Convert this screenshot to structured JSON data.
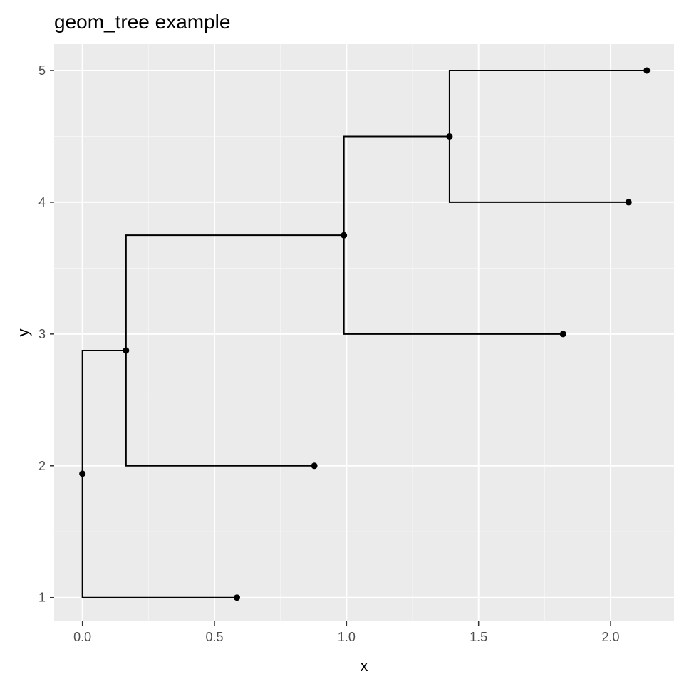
{
  "chart_data": {
    "type": "line",
    "title": "geom_tree example",
    "xlabel": "x",
    "ylabel": "y",
    "xlim": [
      -0.107,
      2.24
    ],
    "ylim": [
      0.82,
      5.2
    ],
    "x_ticks": [
      0.0,
      0.5,
      1.0,
      1.5,
      2.0
    ],
    "x_tick_labels": [
      "0.0",
      "0.5",
      "1.0",
      "1.5",
      "2.0"
    ],
    "y_ticks": [
      1,
      2,
      3,
      4,
      5
    ],
    "y_tick_labels": [
      "1",
      "2",
      "3",
      "4",
      "5"
    ],
    "grid": true,
    "nodes": [
      {
        "x": 0.0,
        "y": 1.94
      },
      {
        "x": 0.165,
        "y": 2.875
      },
      {
        "x": 0.99,
        "y": 3.75
      },
      {
        "x": 1.39,
        "y": 4.5
      },
      {
        "x": 0.585,
        "y": 1.0
      },
      {
        "x": 0.878,
        "y": 2.0
      },
      {
        "x": 1.82,
        "y": 3.0
      },
      {
        "x": 2.068,
        "y": 4.0
      },
      {
        "x": 2.137,
        "y": 5.0
      }
    ],
    "edges": [
      [
        0,
        4
      ],
      [
        0,
        1
      ],
      [
        1,
        5
      ],
      [
        1,
        2
      ],
      [
        2,
        6
      ],
      [
        2,
        3
      ],
      [
        3,
        7
      ],
      [
        3,
        8
      ]
    ],
    "colors": {
      "panel": "#ebebeb",
      "grid_major": "#ffffff",
      "grid_minor": "#f5f5f5",
      "line": "#000000",
      "point": "#000000"
    }
  }
}
